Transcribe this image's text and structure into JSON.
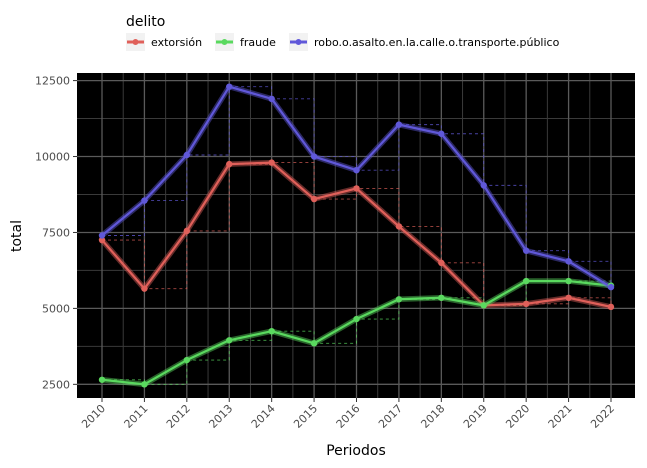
{
  "chart_data": {
    "type": "line",
    "xlabel": "Periodos",
    "ylabel": "total",
    "legend_title": "delito",
    "legend_position": "top",
    "background": "#000000",
    "grid": true,
    "x": [
      "2010",
      "2011",
      "2012",
      "2013",
      "2014",
      "2015",
      "2016",
      "2017",
      "2018",
      "2019",
      "2020",
      "2021",
      "2022"
    ],
    "ylim": [
      2050,
      12750
    ],
    "yticks": [
      2500,
      5000,
      7500,
      10000,
      12500
    ],
    "ytick_labels": [
      "2500",
      "5000",
      "7500",
      "10000",
      "12500"
    ],
    "step_lines": true,
    "series": [
      {
        "name": "extorsión",
        "color": "#e0605a",
        "values": [
          7250,
          5650,
          7550,
          9750,
          9800,
          8600,
          8950,
          7700,
          6500,
          5100,
          5150,
          5350,
          5050
        ]
      },
      {
        "name": "fraude",
        "color": "#5ad95f",
        "values": [
          2650,
          2500,
          3300,
          3950,
          4250,
          3850,
          4650,
          5300,
          5350,
          5100,
          5900,
          5900,
          5750
        ]
      },
      {
        "name": "robo.o.asalto.en.la.calle.o.transporte.público",
        "color": "#6058d9",
        "values": [
          7400,
          8550,
          10050,
          12300,
          11900,
          10000,
          9550,
          11050,
          10750,
          9050,
          6900,
          6550,
          5700
        ]
      }
    ]
  }
}
